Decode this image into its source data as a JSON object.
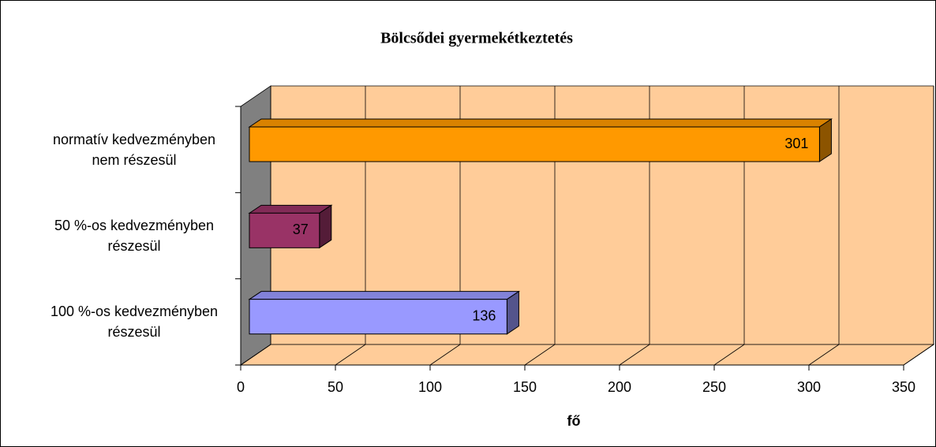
{
  "chart_data": {
    "type": "bar",
    "orientation": "horizontal",
    "title": "Bölcsődei gyermekétkeztetés",
    "x_label": "fő",
    "categories": [
      "normatív kedvezményben nem részesül",
      "50 %-os kedvezményben részesül",
      "100 %-os kedvezményben részesül"
    ],
    "values": [
      301,
      37,
      136
    ],
    "colors": [
      "#ff9900",
      "#993366",
      "#9999ff"
    ],
    "xlim": [
      0,
      350
    ],
    "xticks": [
      0,
      50,
      100,
      150,
      200,
      250,
      300,
      350
    ],
    "grid": true
  }
}
